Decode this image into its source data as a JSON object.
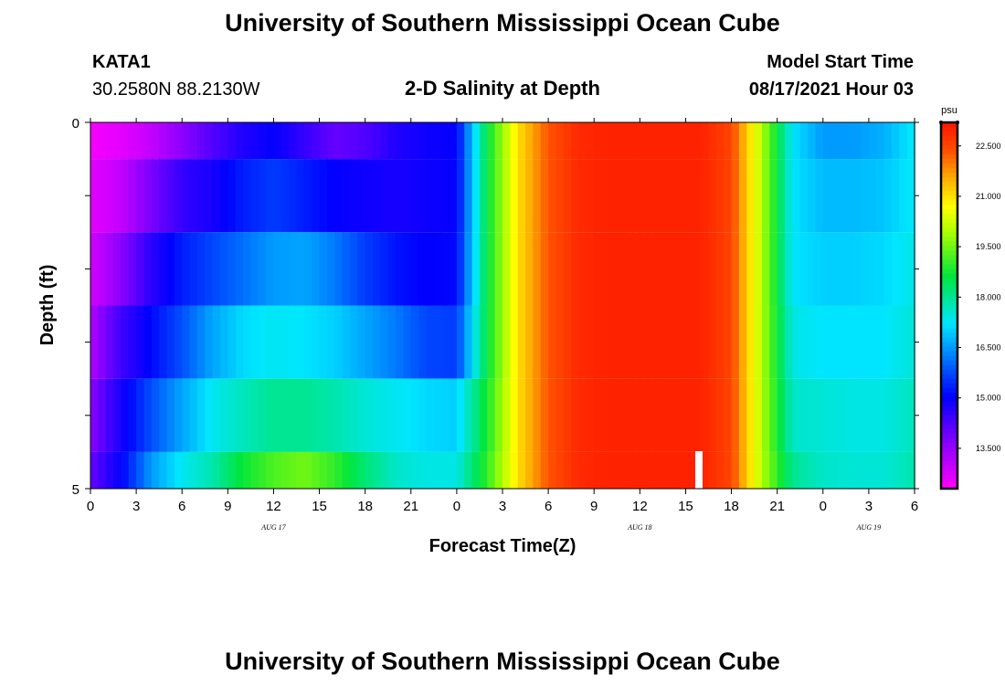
{
  "header": {
    "title_top": "University of Southern Mississippi Ocean Cube",
    "title_bottom": "University of Southern Mississippi Ocean Cube",
    "station_id": "KATA1",
    "coords": "30.2580N  88.2130W",
    "chart_title": "2-D Salinity at Depth",
    "model_start_label": "Model Start Time",
    "model_start_value": "08/17/2021 Hour 03"
  },
  "chart_data": {
    "type": "heatmap",
    "title": "2-D Salinity at Depth",
    "xlabel": "Forecast Time(Z)",
    "ylabel": "Depth (ft)",
    "x_tick_labels": [
      "0",
      "3",
      "6",
      "9",
      "12",
      "15",
      "18",
      "21",
      "0",
      "3",
      "6",
      "9",
      "12",
      "15",
      "18",
      "21",
      "0",
      "3",
      "6"
    ],
    "date_labels": [
      "AUG 17",
      "AUG 18",
      "AUG 19"
    ],
    "y_tick_labels": [
      "0",
      "5"
    ],
    "ylim": [
      0,
      5
    ],
    "colorbar": {
      "unit": "psu",
      "ticks": [
        "22.500",
        "21.000",
        "19.500",
        "18.000",
        "16.500",
        "15.000",
        "13.500"
      ],
      "min": 12.3,
      "max": 23.2
    },
    "x_hours": [
      0,
      2,
      4,
      6,
      8,
      10,
      12,
      14,
      16,
      18,
      20,
      22,
      24,
      26,
      28,
      30,
      32,
      34,
      36,
      38,
      40,
      42,
      44,
      46,
      48,
      50,
      52,
      54
    ],
    "depth_layers": [
      "0-0.5",
      "0.5-1.5",
      "1.5-2.5",
      "2.5-3.5",
      "3.5-4.5",
      "4.5-5"
    ],
    "salinity": [
      [
        12.4,
        12.6,
        13.0,
        13.6,
        14.2,
        14.7,
        15.0,
        14.5,
        14.0,
        14.2,
        14.7,
        14.9,
        15.0,
        18.6,
        21.0,
        22.3,
        22.9,
        23.0,
        23.0,
        23.0,
        23.0,
        22.5,
        20.0,
        17.2,
        16.5,
        16.5,
        16.7,
        17.3
      ],
      [
        12.6,
        13.0,
        13.8,
        14.5,
        14.8,
        15.3,
        15.6,
        15.3,
        15.0,
        14.9,
        14.8,
        14.9,
        15.0,
        18.6,
        21.0,
        22.3,
        22.9,
        23.0,
        23.0,
        23.0,
        23.0,
        22.5,
        20.0,
        17.2,
        16.8,
        16.8,
        16.9,
        17.3
      ],
      [
        12.8,
        13.6,
        14.6,
        15.3,
        15.7,
        16.1,
        16.5,
        16.6,
        16.2,
        15.6,
        15.2,
        15.0,
        15.1,
        18.6,
        21.0,
        22.3,
        22.9,
        23.0,
        23.0,
        23.0,
        23.0,
        22.5,
        20.0,
        17.2,
        17.0,
        17.0,
        17.1,
        17.4
      ],
      [
        13.2,
        14.4,
        15.1,
        15.8,
        16.6,
        17.1,
        17.3,
        17.2,
        17.0,
        16.6,
        16.2,
        15.7,
        15.6,
        18.6,
        21.0,
        22.3,
        22.9,
        23.0,
        23.0,
        23.0,
        23.0,
        22.5,
        20.0,
        17.4,
        17.2,
        17.2,
        17.2,
        17.5
      ],
      [
        13.6,
        14.8,
        15.8,
        16.6,
        17.3,
        17.7,
        18.0,
        18.0,
        17.8,
        17.5,
        17.3,
        17.1,
        17.0,
        18.8,
        21.0,
        22.3,
        22.9,
        23.0,
        23.0,
        23.0,
        23.0,
        22.5,
        20.0,
        17.6,
        17.5,
        17.4,
        17.4,
        17.7
      ],
      [
        14.0,
        15.0,
        16.5,
        17.3,
        17.8,
        18.7,
        19.2,
        19.5,
        19.0,
        18.2,
        17.6,
        17.4,
        17.4,
        19.0,
        21.0,
        22.3,
        22.9,
        23.0,
        23.0,
        23.0,
        23.0,
        22.5,
        20.0,
        18.0,
        17.6,
        17.5,
        17.5,
        17.8
      ]
    ]
  }
}
